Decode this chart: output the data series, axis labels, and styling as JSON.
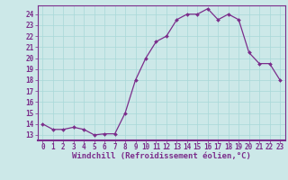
{
  "x": [
    0,
    1,
    2,
    3,
    4,
    5,
    6,
    7,
    8,
    9,
    10,
    11,
    12,
    13,
    14,
    15,
    16,
    17,
    18,
    19,
    20,
    21,
    22,
    23
  ],
  "y": [
    14.0,
    13.5,
    13.5,
    13.7,
    13.5,
    13.0,
    13.1,
    13.1,
    15.0,
    18.0,
    20.0,
    21.5,
    22.0,
    23.5,
    24.0,
    24.0,
    24.5,
    23.5,
    24.0,
    23.5,
    20.5,
    19.5,
    19.5,
    18.0
  ],
  "line_color": "#7b2d8b",
  "marker": "D",
  "marker_size": 2.0,
  "line_width": 0.9,
  "xlabel": "Windchill (Refroidissement éolien,°C)",
  "xlabel_fontsize": 6.5,
  "ylabel_ticks": [
    13,
    14,
    15,
    16,
    17,
    18,
    19,
    20,
    21,
    22,
    23,
    24
  ],
  "xtick_labels": [
    "0",
    "1",
    "2",
    "3",
    "4",
    "5",
    "6",
    "7",
    "8",
    "9",
    "10",
    "11",
    "12",
    "13",
    "14",
    "15",
    "16",
    "17",
    "18",
    "19",
    "20",
    "21",
    "22",
    "23"
  ],
  "xlim": [
    -0.5,
    23.5
  ],
  "ylim": [
    12.5,
    24.8
  ],
  "grid_color": "#a8d8d8",
  "bg_color": "#cce8e8",
  "tick_fontsize": 5.5,
  "border_color": "#7b2d8b"
}
